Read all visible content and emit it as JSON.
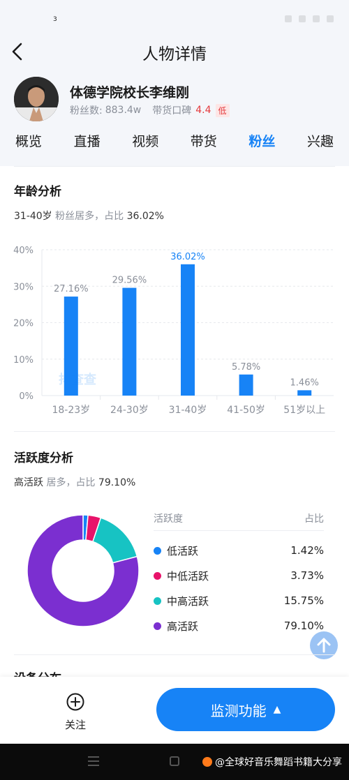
{
  "status_bar": {
    "signal_label": "3"
  },
  "header": {
    "title": "人物详情"
  },
  "profile": {
    "name": "体德学院校长李维刚",
    "fans_label": "粉丝数:",
    "fans_value": "883.4w",
    "rating_label": "带货口碑",
    "rating_value": "4.4",
    "rating_tag": "低"
  },
  "tabs": [
    {
      "label": "概览"
    },
    {
      "label": "直播"
    },
    {
      "label": "视频"
    },
    {
      "label": "带货"
    },
    {
      "label": "粉丝",
      "active": true
    },
    {
      "label": "兴趣"
    }
  ],
  "age_section": {
    "title": "年龄分析",
    "summary_group": "31-40岁",
    "summary_mid": "粉丝居多，占比",
    "summary_value": "36.02%",
    "watermark": "抖查查"
  },
  "chart_data": {
    "type": "bar",
    "categories": [
      "18-23岁",
      "24-30岁",
      "31-40岁",
      "41-50岁",
      "51岁以上"
    ],
    "values": [
      27.16,
      29.56,
      36.02,
      5.78,
      1.46
    ],
    "value_labels": [
      "27.16%",
      "29.56%",
      "36.02%",
      "5.78%",
      "1.46%"
    ],
    "highlight_index": 2,
    "yticks": [
      "0%",
      "10%",
      "20%",
      "30%",
      "40%"
    ],
    "ylim": [
      0,
      40
    ],
    "bar_color": "#1783f6",
    "grid": true
  },
  "activity_section": {
    "title": "活跃度分析",
    "summary_group": "高活跃",
    "summary_mid": "居多，占比",
    "summary_value": "79.10%",
    "legend_header_left": "活跃度",
    "legend_header_right": "占比",
    "items": [
      {
        "label": "低活跃",
        "value": 1.42,
        "display": "1.42%",
        "color": "#1783f6"
      },
      {
        "label": "中低活跃",
        "value": 3.73,
        "display": "3.73%",
        "color": "#e8136a"
      },
      {
        "label": "中高活跃",
        "value": 15.75,
        "display": "15.75%",
        "color": "#17c3c3"
      },
      {
        "label": "高活跃",
        "value": 79.1,
        "display": "79.10%",
        "color": "#7b2fd0"
      }
    ]
  },
  "next_section": {
    "title": "设备分布"
  },
  "bottom_bar": {
    "follow_label": "关注",
    "monitor_label": "监测功能"
  },
  "system_bar": {
    "credit": "@全球好音乐舞蹈书籍大分享"
  }
}
